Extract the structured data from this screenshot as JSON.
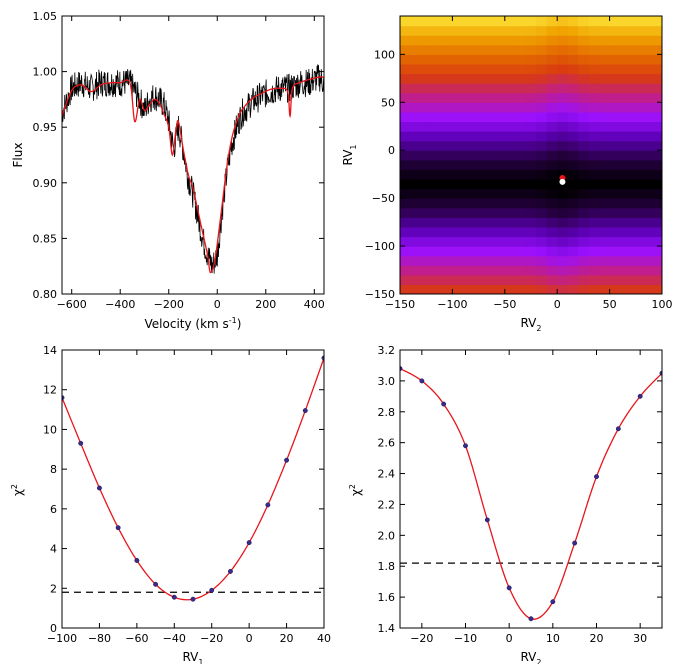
{
  "chart_data": [
    {
      "id": "spectrum",
      "type": "line",
      "xlabel": "Velocity (km s",
      "xlabel_sup": "-1",
      "xlabel_close": ")",
      "ylabel": "Flux",
      "xlim": [
        -640,
        440
      ],
      "ylim": [
        0.8,
        1.05
      ],
      "xticks": [
        -600,
        -400,
        -200,
        0,
        200,
        400
      ],
      "yticks": [
        0.8,
        0.85,
        0.9,
        0.95,
        1.0,
        1.05
      ],
      "yticklabels": [
        "0.80",
        "0.85",
        "0.90",
        "0.95",
        "1.00",
        "1.05"
      ],
      "series": [
        {
          "color": "#000000",
          "noise": 0.013,
          "x": [
            -640,
            -600,
            -560,
            -520,
            -480,
            -440,
            -400,
            -360,
            -320,
            -300,
            -280,
            -260,
            -240,
            -220,
            -200,
            -180,
            -160,
            -140,
            -120,
            -100,
            -80,
            -60,
            -40,
            -20,
            0,
            20,
            40,
            60,
            80,
            100,
            140,
            180,
            220,
            260,
            300,
            340,
            380,
            420,
            440
          ],
          "y": [
            0.963,
            0.985,
            0.99,
            0.985,
            0.99,
            0.99,
            0.99,
            0.99,
            0.975,
            0.965,
            0.975,
            0.978,
            0.975,
            0.97,
            0.955,
            0.93,
            0.95,
            0.93,
            0.905,
            0.89,
            0.87,
            0.85,
            0.835,
            0.825,
            0.835,
            0.875,
            0.91,
            0.935,
            0.95,
            0.962,
            0.972,
            0.978,
            0.982,
            0.985,
            0.985,
            0.99,
            0.99,
            0.995,
            0.99
          ]
        },
        {
          "color": "#e8161b",
          "x": [
            -640,
            -600,
            -560,
            -520,
            -480,
            -440,
            -400,
            -360,
            -340,
            -320,
            -300,
            -280,
            -260,
            -240,
            -220,
            -200,
            -185,
            -170,
            -160,
            -140,
            -120,
            -100,
            -80,
            -60,
            -40,
            -30,
            -20,
            -10,
            0,
            20,
            40,
            60,
            80,
            100,
            140,
            180,
            220,
            260,
            290,
            300,
            310,
            340,
            380,
            420,
            440
          ],
          "y": [
            0.96,
            0.983,
            0.988,
            0.982,
            0.988,
            0.99,
            0.99,
            0.99,
            0.955,
            0.975,
            0.965,
            0.97,
            0.975,
            0.972,
            0.962,
            0.95,
            0.925,
            0.948,
            0.955,
            0.93,
            0.908,
            0.895,
            0.875,
            0.855,
            0.835,
            0.82,
            0.822,
            0.83,
            0.845,
            0.88,
            0.915,
            0.94,
            0.955,
            0.965,
            0.975,
            0.98,
            0.984,
            0.985,
            0.982,
            0.96,
            0.985,
            0.99,
            0.993,
            0.995,
            0.995
          ]
        }
      ]
    },
    {
      "id": "chi2-map",
      "type": "heatmap",
      "xlabel": "RV",
      "xlabel_sub": "2",
      "ylabel": "RV",
      "ylabel_sub": "1",
      "xlim": [
        -150,
        100
      ],
      "ylim": [
        -150,
        140
      ],
      "xticks": [
        -150,
        -100,
        -50,
        0,
        50,
        100
      ],
      "yticks": [
        -150,
        -100,
        -50,
        0,
        50,
        100
      ],
      "row_step": 10,
      "center_rv2": 5,
      "center_rv1": -35,
      "colormap": [
        "#000000",
        "#26003f",
        "#5a00b0",
        "#9a10ff",
        "#c11e8a",
        "#d83a10",
        "#e46a00",
        "#f0a400",
        "#fde63a"
      ],
      "markers": [
        {
          "rv2": 5,
          "rv1": -29,
          "color": "#e8161b"
        },
        {
          "rv2": 5,
          "rv1": -33,
          "color": "#ffffff"
        }
      ]
    },
    {
      "id": "chi2-rv1",
      "type": "line",
      "xlabel": "RV",
      "xlabel_sub": "1",
      "ylabel": "χ",
      "ylabel_sup": "2",
      "xlim": [
        -100,
        40
      ],
      "ylim": [
        0,
        14
      ],
      "xticks": [
        -100,
        -80,
        -60,
        -40,
        -20,
        0,
        20,
        40
      ],
      "yticks": [
        0,
        2,
        4,
        6,
        8,
        10,
        12,
        14
      ],
      "hline": 1.8,
      "points": {
        "x": [
          -100,
          -90,
          -80,
          -70,
          -60,
          -50,
          -40,
          -30,
          -20,
          -10,
          0,
          10,
          20,
          30,
          40
        ],
        "y": [
          11.6,
          9.3,
          7.05,
          5.05,
          3.4,
          2.2,
          1.55,
          1.45,
          1.9,
          2.85,
          4.3,
          6.2,
          8.45,
          10.95,
          13.6
        ]
      }
    },
    {
      "id": "chi2-rv2",
      "type": "line",
      "xlabel": "RV",
      "xlabel_sub": "2",
      "ylabel": "χ",
      "ylabel_sup": "2",
      "xlim": [
        -25,
        35
      ],
      "ylim": [
        1.4,
        3.2
      ],
      "xticks": [
        -20,
        -10,
        0,
        10,
        20,
        30
      ],
      "yticks": [
        1.4,
        1.6,
        1.8,
        2.0,
        2.2,
        2.4,
        2.6,
        2.8,
        3.0,
        3.2
      ],
      "yticklabels": [
        "1.4",
        "1.6",
        "1.8",
        "2.0",
        "2.2",
        "2.4",
        "2.6",
        "2.8",
        "3.0",
        "3.2"
      ],
      "hline": 1.82,
      "points": {
        "x": [
          -25,
          -20,
          -15,
          -10,
          -5,
          0,
          5,
          10,
          15,
          20,
          25,
          30,
          35
        ],
        "y": [
          3.08,
          3.0,
          2.85,
          2.58,
          2.1,
          1.66,
          1.46,
          1.57,
          1.95,
          2.38,
          2.69,
          2.9,
          3.05
        ]
      }
    }
  ],
  "colors": {
    "fit": "#e8161b",
    "points": "#3a2a8a",
    "frame": "#000000"
  }
}
